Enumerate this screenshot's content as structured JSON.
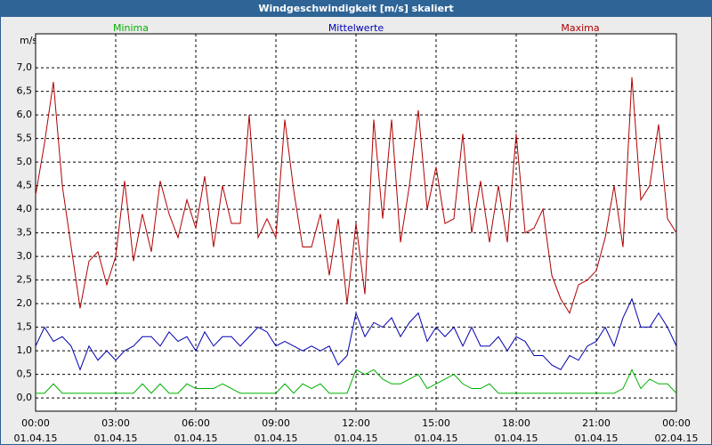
{
  "chart_data": {
    "type": "line",
    "title": "Windgeschwindigkeit [m/s] skaliert",
    "y_label": "m/s",
    "x": [
      "00:00 01.04.15",
      "00:20 01.04.15",
      "00:40 01.04.15",
      "01:00 01.04.15",
      "01:20 01.04.15",
      "01:40 01.04.15",
      "02:00 01.04.15",
      "02:20 01.04.15",
      "02:40 01.04.15",
      "03:00 01.04.15",
      "03:20 01.04.15",
      "03:40 01.04.15",
      "04:00 01.04.15",
      "04:20 01.04.15",
      "04:40 01.04.15",
      "05:00 01.04.15",
      "05:20 01.04.15",
      "05:40 01.04.15",
      "06:00 01.04.15",
      "06:20 01.04.15",
      "06:40 01.04.15",
      "07:00 01.04.15",
      "07:20 01.04.15",
      "07:40 01.04.15",
      "08:00 01.04.15",
      "08:20 01.04.15",
      "08:40 01.04.15",
      "09:00 01.04.15",
      "09:20 01.04.15",
      "09:40 01.04.15",
      "10:00 01.04.15",
      "10:20 01.04.15",
      "10:40 01.04.15",
      "11:00 01.04.15",
      "11:20 01.04.15",
      "11:40 01.04.15",
      "12:00 01.04.15",
      "12:20 01.04.15",
      "12:40 01.04.15",
      "13:00 01.04.15",
      "13:20 01.04.15",
      "13:40 01.04.15",
      "14:00 01.04.15",
      "14:20 01.04.15",
      "14:40 01.04.15",
      "15:00 01.04.15",
      "15:20 01.04.15",
      "15:40 01.04.15",
      "16:00 01.04.15",
      "16:20 01.04.15",
      "16:40 01.04.15",
      "17:00 01.04.15",
      "17:20 01.04.15",
      "17:40 01.04.15",
      "18:00 01.04.15",
      "18:20 01.04.15",
      "18:40 01.04.15",
      "19:00 01.04.15",
      "19:20 01.04.15",
      "19:40 01.04.15",
      "20:00 01.04.15",
      "20:20 01.04.15",
      "20:40 01.04.15",
      "21:00 01.04.15",
      "21:20 01.04.15",
      "21:40 01.04.15",
      "22:00 01.04.15",
      "22:20 01.04.15",
      "22:40 01.04.15",
      "23:00 01.04.15",
      "23:20 01.04.15",
      "23:40 01.04.15",
      "00:00 02.04.15"
    ],
    "series": [
      {
        "name": "Minima",
        "color": "#00b000",
        "values": [
          0.1,
          0.1,
          0.3,
          0.1,
          0.1,
          0.1,
          0.1,
          0.1,
          0.1,
          0.1,
          0.1,
          0.1,
          0.3,
          0.1,
          0.3,
          0.1,
          0.1,
          0.3,
          0.2,
          0.2,
          0.2,
          0.3,
          0.2,
          0.1,
          0.1,
          0.1,
          0.1,
          0.1,
          0.3,
          0.1,
          0.3,
          0.2,
          0.3,
          0.1,
          0.1,
          0.1,
          0.6,
          0.5,
          0.6,
          0.4,
          0.3,
          0.3,
          0.4,
          0.5,
          0.2,
          0.3,
          0.4,
          0.5,
          0.3,
          0.2,
          0.2,
          0.3,
          0.1,
          0.1,
          0.1,
          0.1,
          0.1,
          0.1,
          0.1,
          0.1,
          0.1,
          0.1,
          0.1,
          0.1,
          0.1,
          0.1,
          0.2,
          0.6,
          0.2,
          0.4,
          0.3,
          0.3,
          0.1
        ]
      },
      {
        "name": "Mittelwerte",
        "color": "#0000b0",
        "values": [
          1.1,
          1.5,
          1.2,
          1.3,
          1.1,
          0.6,
          1.1,
          0.8,
          1.0,
          0.8,
          1.0,
          1.1,
          1.3,
          1.3,
          1.1,
          1.4,
          1.2,
          1.3,
          1.0,
          1.4,
          1.1,
          1.3,
          1.3,
          1.1,
          1.3,
          1.5,
          1.4,
          1.1,
          1.2,
          1.1,
          1.0,
          1.1,
          1.0,
          1.1,
          0.7,
          0.9,
          1.8,
          1.3,
          1.6,
          1.5,
          1.7,
          1.3,
          1.6,
          1.8,
          1.2,
          1.5,
          1.3,
          1.5,
          1.1,
          1.5,
          1.1,
          1.1,
          1.3,
          1.0,
          1.3,
          1.2,
          0.9,
          0.9,
          0.7,
          0.6,
          0.9,
          0.8,
          1.1,
          1.2,
          1.5,
          1.1,
          1.7,
          2.1,
          1.5,
          1.5,
          1.8,
          1.5,
          1.1
        ]
      },
      {
        "name": "Maxima",
        "color": "#b00000",
        "values": [
          4.3,
          5.4,
          6.7,
          4.5,
          3.2,
          1.9,
          2.9,
          3.1,
          2.4,
          3.0,
          4.6,
          2.9,
          3.9,
          3.1,
          4.6,
          3.9,
          3.4,
          4.2,
          3.6,
          4.7,
          3.2,
          4.5,
          3.7,
          3.7,
          6.0,
          3.4,
          3.8,
          3.4,
          5.9,
          4.4,
          3.2,
          3.2,
          3.9,
          2.6,
          3.8,
          2.0,
          3.7,
          2.2,
          5.9,
          3.8,
          5.9,
          3.3,
          4.5,
          6.1,
          4.0,
          4.9,
          3.7,
          3.8,
          5.6,
          3.5,
          4.6,
          3.3,
          4.5,
          3.3,
          5.6,
          3.5,
          3.6,
          4.0,
          2.6,
          2.1,
          1.8,
          2.4,
          2.5,
          2.7,
          3.4,
          4.5,
          3.2,
          6.8,
          4.2,
          4.5,
          5.8,
          3.8,
          3.5
        ]
      }
    ],
    "xlim": [
      "00:00 01.04.15",
      "00:00 02.04.15"
    ],
    "xticks": [
      "00:00 01.04.15",
      "03:00 01.04.15",
      "06:00 01.04.15",
      "09:00 01.04.15",
      "12:00 01.04.15",
      "15:00 01.04.15",
      "18:00 01.04.15",
      "21:00 01.04.15",
      "00:00 02.04.15"
    ],
    "ylim": [
      -0.28,
      7.72
    ],
    "yticks": [
      {
        "value": 0,
        "label": "0,0"
      },
      {
        "value": 0.5,
        "label": "0,5"
      },
      {
        "value": 1,
        "label": "1,0"
      },
      {
        "value": 1.5,
        "label": "1,5"
      },
      {
        "value": 2,
        "label": "2,0"
      },
      {
        "value": 2.5,
        "label": "2,5"
      },
      {
        "value": 3,
        "label": "3,0"
      },
      {
        "value": 3.5,
        "label": "3,5"
      },
      {
        "value": 4,
        "label": "4,0"
      },
      {
        "value": 4.5,
        "label": "4,5"
      },
      {
        "value": 5,
        "label": "5,0"
      },
      {
        "value": 5.5,
        "label": "5,5"
      },
      {
        "value": 6,
        "label": "6,0"
      },
      {
        "value": 6.5,
        "label": "6,5"
      },
      {
        "value": 7,
        "label": "7,0"
      }
    ],
    "grid": true
  }
}
